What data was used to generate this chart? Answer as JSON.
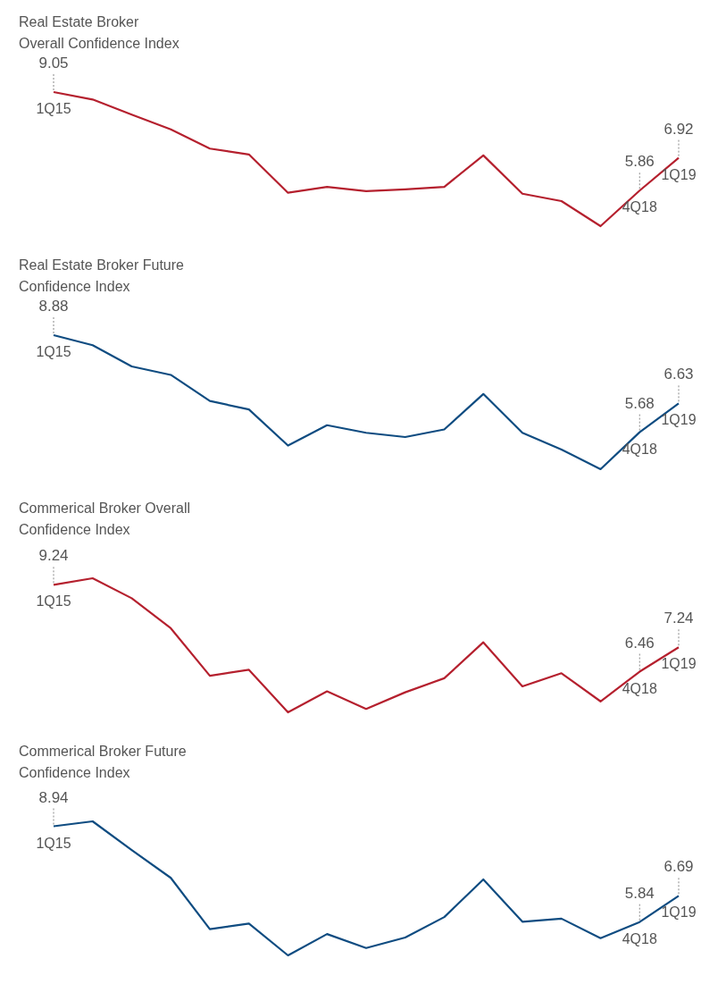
{
  "chart_data": [
    {
      "type": "line",
      "title": "Real Estate Broker Overall Confidence Index",
      "categories": [
        "1Q15",
        null,
        null,
        null,
        null,
        null,
        null,
        null,
        null,
        null,
        null,
        null,
        null,
        null,
        null,
        "4Q18",
        "1Q19"
      ],
      "series": [
        {
          "color": "#b5202e",
          "values": [
            9.05,
            8.81,
            8.32,
            7.84,
            7.22,
            7.03,
            5.79,
            5.98,
            5.84,
            5.9,
            5.98,
            7.0,
            5.76,
            5.52,
            4.71,
            5.86,
            6.92
          ],
          "value_labels": [
            "9.05",
            null,
            null,
            null,
            null,
            null,
            null,
            null,
            null,
            null,
            null,
            null,
            null,
            null,
            null,
            "5.86",
            "6.92"
          ]
        }
      ]
    },
    {
      "type": "line",
      "title": "Real Estate Broker Future Confidence Index",
      "categories": [
        "1Q15",
        null,
        null,
        null,
        null,
        null,
        null,
        null,
        null,
        null,
        null,
        null,
        null,
        null,
        null,
        "4Q18",
        "1Q19"
      ],
      "series": [
        {
          "color": "#0f4c81",
          "values": [
            8.88,
            8.55,
            7.85,
            7.57,
            6.71,
            6.43,
            5.24,
            5.91,
            5.66,
            5.52,
            5.77,
            6.94,
            5.66,
            5.11,
            4.46,
            5.68,
            6.63
          ],
          "value_labels": [
            "8.88",
            null,
            null,
            null,
            null,
            null,
            null,
            null,
            null,
            null,
            null,
            null,
            null,
            null,
            null,
            "5.68",
            "6.63"
          ]
        }
      ]
    },
    {
      "type": "line",
      "title": "Commerical Broker Overall Confidence Index",
      "categories": [
        "1Q15",
        null,
        null,
        null,
        null,
        null,
        null,
        null,
        null,
        null,
        null,
        null,
        null,
        null,
        null,
        "4Q18",
        "1Q19"
      ],
      "series": [
        {
          "color": "#b5202e",
          "values": [
            9.24,
            9.45,
            8.81,
            7.85,
            6.33,
            6.52,
            5.16,
            5.83,
            5.27,
            5.8,
            6.25,
            7.4,
            5.99,
            6.41,
            5.51,
            6.46,
            7.24
          ],
          "value_labels": [
            "9.24",
            null,
            null,
            null,
            null,
            null,
            null,
            null,
            null,
            null,
            null,
            null,
            null,
            null,
            null,
            "6.46",
            "7.24"
          ]
        }
      ]
    },
    {
      "type": "line",
      "title": "Commerical Broker Future Confidence Index",
      "categories": [
        "1Q15",
        null,
        null,
        null,
        null,
        null,
        null,
        null,
        null,
        null,
        null,
        null,
        null,
        null,
        null,
        "4Q18",
        "1Q19"
      ],
      "series": [
        {
          "color": "#0f4c81",
          "values": [
            8.94,
            9.1,
            8.17,
            7.27,
            5.61,
            5.79,
            4.76,
            5.45,
            5.0,
            5.34,
            6.0,
            7.22,
            5.85,
            5.95,
            5.32,
            5.84,
            6.69
          ],
          "value_labels": [
            "8.94",
            null,
            null,
            null,
            null,
            null,
            null,
            null,
            null,
            null,
            null,
            null,
            null,
            null,
            null,
            "5.84",
            "6.69"
          ]
        }
      ]
    }
  ]
}
